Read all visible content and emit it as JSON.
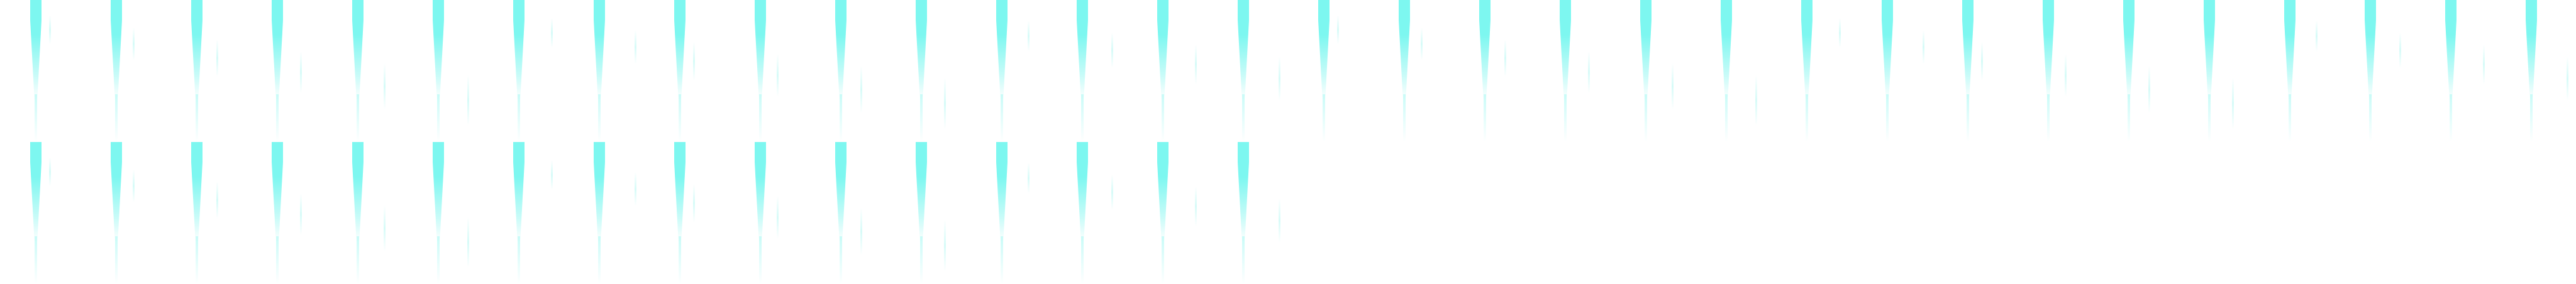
{
  "sprite_sheet": {
    "columns": 32,
    "rows": 2,
    "frame_count": 48,
    "row_frame_counts": [
      32,
      16
    ],
    "effect_icon": "cyan-light-beam-icon",
    "colors": {
      "background": "#ffffff",
      "beam_core": "#7df7f0",
      "beam_glow": "#c9fbf8",
      "streak": "#d6fbf8"
    }
  }
}
